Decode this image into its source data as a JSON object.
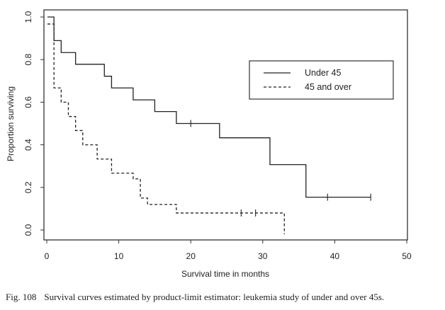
{
  "chart_data": {
    "type": "line",
    "step": true,
    "xlabel": "Survival time in months",
    "ylabel": "Proportion surviving",
    "xlim": [
      0,
      50
    ],
    "ylim": [
      0.0,
      1.0
    ],
    "x_ticks": [
      0,
      10,
      20,
      30,
      40,
      50
    ],
    "x_tick_labels": [
      "0",
      "10",
      "20",
      "30",
      "40",
      "50"
    ],
    "y_ticks": [
      0.0,
      0.2,
      0.4,
      0.6,
      0.8,
      1.0
    ],
    "y_tick_labels": [
      "0.0",
      "0.2",
      "0.4",
      "0.6",
      "0.8",
      "1.0"
    ],
    "grid": false,
    "legend_position": "top-right",
    "series": [
      {
        "name": "Under 45",
        "style": "solid",
        "color": "#222222",
        "steps": [
          {
            "t": 0,
            "s": 1.0
          },
          {
            "t": 1,
            "s": 0.889
          },
          {
            "t": 2,
            "s": 0.833
          },
          {
            "t": 4,
            "s": 0.778
          },
          {
            "t": 8,
            "s": 0.722
          },
          {
            "t": 9,
            "s": 0.667
          },
          {
            "t": 12,
            "s": 0.611
          },
          {
            "t": 15,
            "s": 0.556
          },
          {
            "t": 18,
            "s": 0.5
          },
          {
            "t": 24,
            "s": 0.433
          },
          {
            "t": 31,
            "s": 0.307
          },
          {
            "t": 36,
            "s": 0.154
          }
        ],
        "end": 45,
        "censored": [
          20,
          39,
          45
        ]
      },
      {
        "name": "45 and over",
        "style": "dashed",
        "color": "#222222",
        "steps": [
          {
            "t": 0,
            "s": 0.967
          },
          {
            "t": 1,
            "s": 0.667
          },
          {
            "t": 2,
            "s": 0.6
          },
          {
            "t": 3,
            "s": 0.533
          },
          {
            "t": 4,
            "s": 0.467
          },
          {
            "t": 5,
            "s": 0.4
          },
          {
            "t": 7,
            "s": 0.333
          },
          {
            "t": 9,
            "s": 0.267
          },
          {
            "t": 12,
            "s": 0.24
          },
          {
            "t": 13,
            "s": 0.15
          },
          {
            "t": 14,
            "s": 0.12
          },
          {
            "t": 18,
            "s": 0.08
          },
          {
            "t": 33,
            "s": -0.02
          }
        ],
        "end": 33,
        "censored": [
          27,
          29
        ]
      }
    ]
  },
  "caption": {
    "number": "Fig. 108",
    "text": "Survival curves estimated by product-limit estimator: leukemia study of under and over 45s."
  }
}
